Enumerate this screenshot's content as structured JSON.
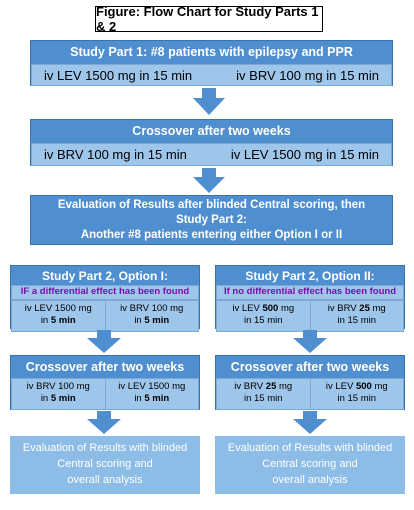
{
  "title": "Figure:  Flow Chart for Study Parts 1 & 2",
  "part1": {
    "header": "Study Part 1:  #8  patients with epilepsy and PPR",
    "left": "iv LEV 1500 mg in 15 min",
    "right": "iv BRV 100 mg in 15 min"
  },
  "crossover1": {
    "header": "Crossover after  two weeks",
    "left": "iv BRV 100 mg in 15 min",
    "right": "iv LEV 1500 mg in 15 min"
  },
  "evaluation1": {
    "line1": "Evaluation of Results after blinded Central scoring, then",
    "line2": "Study Part 2:",
    "line3": "Another #8 patients entering either Option I or II"
  },
  "option1": {
    "header": "Study Part 2, Option I:",
    "condition": "IF a differential effect has been found",
    "left": {
      "drug": "iv LEV 1500 mg",
      "time_prefix": "in",
      "time": "5 min"
    },
    "right": {
      "drug": "iv BRV 100 mg",
      "time_prefix": "in",
      "time": "5 min"
    },
    "crossover_header": "Crossover after two weeks",
    "cross_left": {
      "drug": "iv BRV 100 mg",
      "time_prefix": "in",
      "time": "5 min"
    },
    "cross_right": {
      "drug": "iv LEV 1500 mg",
      "time_prefix": "in",
      "time": "5 min"
    },
    "eval": {
      "line1": "Evaluation of Results with blinded",
      "line2": "Central scoring and",
      "line3": "overall analysis"
    }
  },
  "option2": {
    "header": "Study Part 2, Option II:",
    "condition": "If no differential effect has been found",
    "left": {
      "drug_prefix": "iv LEV",
      "dose": "500",
      "unit": "mg",
      "time": "in 15 min"
    },
    "right": {
      "drug_prefix": "iv BRV",
      "dose": "25",
      "unit": "mg",
      "time": "in 15 min"
    },
    "crossover_header": "Crossover after two weeks",
    "cross_left": {
      "drug_prefix": "iv BRV",
      "dose": "25",
      "unit": "mg",
      "time": "in 15 min"
    },
    "cross_right": {
      "drug_prefix": "iv LEV",
      "dose": "500",
      "unit": "mg",
      "time": "in 15 min"
    },
    "eval": {
      "line1": "Evaluation of Results with blinded",
      "line2": "Central scoring and",
      "line3": "overall analysis"
    }
  },
  "colors": {
    "box": "#4f8fd0",
    "sub": "#9ec5ea",
    "purple": "#7a0fa8",
    "arrow": "#4f8fd0"
  }
}
